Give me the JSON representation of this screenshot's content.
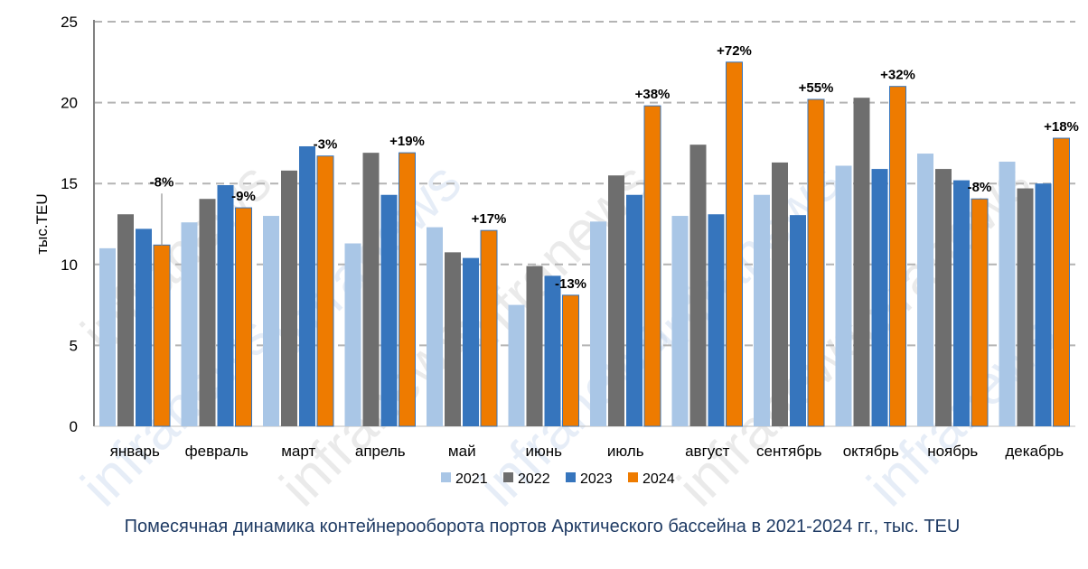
{
  "chart_data": {
    "type": "bar",
    "title": "Помесячная динамика контейнерооборота портов Арктического бассейна в 2021-2024 гг., тыс. TEU",
    "ylabel": "тыс.TEU",
    "xlabel": "",
    "ylim": [
      0,
      25
    ],
    "yticks": [
      0,
      5,
      10,
      15,
      20,
      25
    ],
    "grid": true,
    "legend_position": "bottom",
    "categories": [
      "январь",
      "февраль",
      "март",
      "апрель",
      "май",
      "июнь",
      "июль",
      "август",
      "сентябрь",
      "октябрь",
      "ноябрь",
      "декабрь"
    ],
    "series": [
      {
        "name": "2021",
        "color": "#a9c6e6",
        "values": [
          11.0,
          12.6,
          13.0,
          11.3,
          12.3,
          7.5,
          12.65,
          13.0,
          14.3,
          16.1,
          16.85,
          16.35
        ]
      },
      {
        "name": "2022",
        "color": "#6e6e6e",
        "values": [
          13.1,
          14.05,
          15.8,
          16.9,
          10.75,
          9.9,
          15.5,
          17.4,
          16.3,
          20.3,
          15.9,
          14.7
        ]
      },
      {
        "name": "2023",
        "color": "#3675bd",
        "values": [
          12.2,
          14.9,
          17.3,
          14.3,
          10.4,
          9.3,
          14.3,
          13.1,
          13.05,
          15.9,
          15.2,
          15.0
        ]
      },
      {
        "name": "2024",
        "color": "#ee7b00",
        "values": [
          11.2,
          13.5,
          16.7,
          16.9,
          12.1,
          8.1,
          19.8,
          22.5,
          20.2,
          21.0,
          14.05,
          17.8
        ]
      }
    ],
    "annotations": [
      "-8%",
      "-9%",
      "-3%",
      "+19%",
      "+17%",
      "-13%",
      "+38%",
      "+72%",
      "+55%",
      "+32%",
      "-8%",
      "+18%"
    ]
  },
  "watermark": "infranews"
}
